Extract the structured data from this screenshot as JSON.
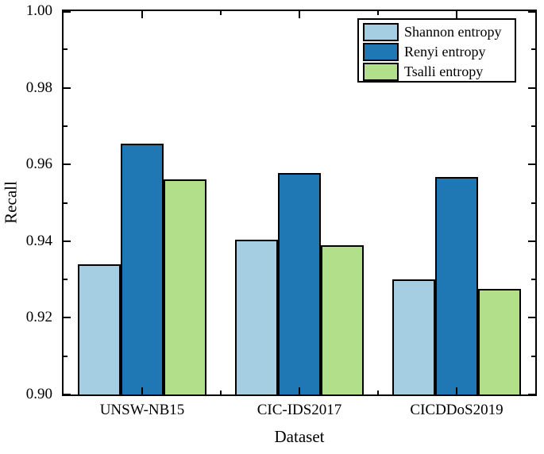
{
  "figure": {
    "background_color": "#ffffff",
    "frame_color": "#000000"
  },
  "chart_data": {
    "type": "bar",
    "title": "",
    "xlabel": "Dataset",
    "ylabel": "Recall",
    "categories": [
      "UNSW-NB15",
      "CIC-IDS2017",
      "CICDDoS2019"
    ],
    "series": [
      {
        "name": "Shannon entropy",
        "color": "#a6cee3",
        "values": [
          0.934,
          0.9403,
          0.93
        ]
      },
      {
        "name": "Renyi entropy",
        "color": "#1f78b4",
        "values": [
          0.9655,
          0.9578,
          0.9567
        ]
      },
      {
        "name": "Tsalli entropy",
        "color": "#b2df8a",
        "values": [
          0.9562,
          0.939,
          0.9275
        ]
      }
    ],
    "bar_edge_color": "#000000",
    "ylim": [
      0.9,
      1.0
    ],
    "ytick_major_step": 0.02,
    "ytick_minor_step": 0.01,
    "ytick_labels": [
      "0.90",
      "0.92",
      "0.94",
      "0.96",
      "0.98",
      "1.00"
    ],
    "grid": false,
    "legend_position": "top-right",
    "tick_direction": "in",
    "mirrored_ticks": true
  }
}
